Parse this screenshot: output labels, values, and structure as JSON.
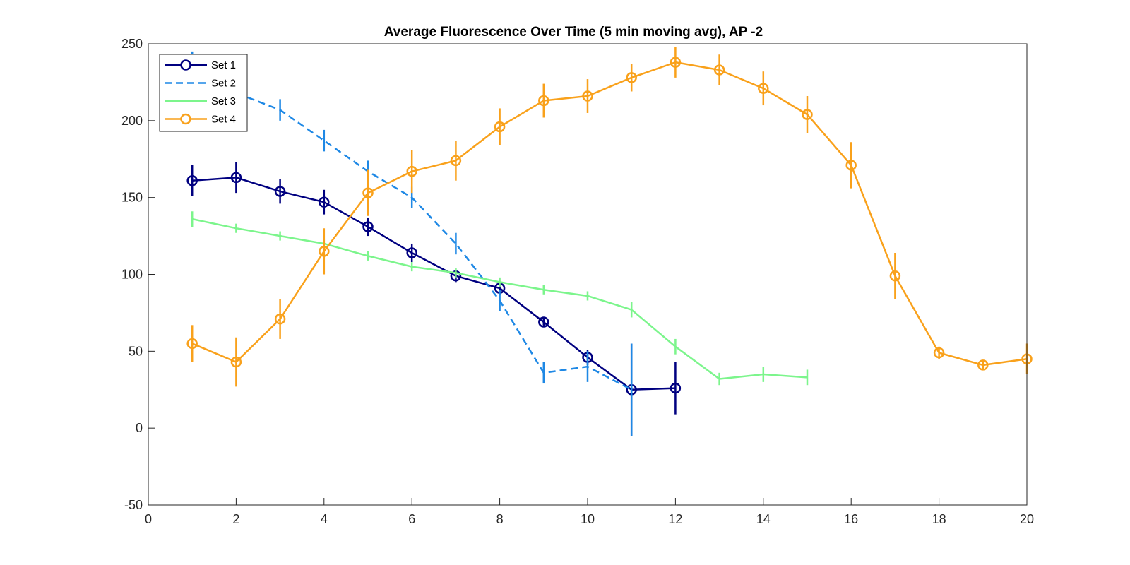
{
  "chart_data": {
    "type": "line",
    "title": "Average Fluorescence Over Time (5 min moving avg), AP -2",
    "xlabel": "",
    "ylabel": "",
    "xlim": [
      0,
      20
    ],
    "ylim": [
      -50,
      250
    ],
    "xticks": [
      "0",
      "2",
      "4",
      "6",
      "8",
      "10",
      "12",
      "14",
      "16",
      "18",
      "20"
    ],
    "yticks": [
      "-50",
      "0",
      "50",
      "100",
      "150",
      "200",
      "250"
    ],
    "grid": false,
    "legend_position": "top-left",
    "series": [
      {
        "name": "Set 1",
        "color": "#000080",
        "line_style": "solid",
        "marker": "circle",
        "x": [
          1,
          2,
          3,
          4,
          5,
          6,
          7,
          8,
          9,
          10,
          11,
          12
        ],
        "y": [
          161,
          163,
          154,
          147,
          131,
          114,
          99,
          91,
          69,
          46,
          25,
          26
        ],
        "err": [
          10,
          10,
          8,
          8,
          6,
          6,
          4,
          4,
          3,
          5,
          30,
          17
        ]
      },
      {
        "name": "Set 2",
        "color": "#1E88E5",
        "line_style": "dashed",
        "marker": "none",
        "x": [
          1,
          2,
          3,
          4,
          5,
          6,
          7,
          8,
          9,
          10,
          11
        ],
        "y": [
          240,
          218,
          207,
          187,
          167,
          150,
          120,
          83,
          36,
          40,
          25
        ],
        "err": [
          5,
          5,
          7,
          7,
          7,
          7,
          7,
          7,
          7,
          10,
          30
        ]
      },
      {
        "name": "Set 3",
        "color": "#7CF58C",
        "line_style": "solid",
        "marker": "none",
        "x": [
          1,
          2,
          3,
          4,
          5,
          6,
          7,
          8,
          9,
          10,
          11,
          12,
          13,
          14,
          15
        ],
        "y": [
          136,
          130,
          125,
          120,
          112,
          105,
          101,
          95,
          90,
          86,
          77,
          53,
          32,
          35,
          33
        ],
        "err": [
          5,
          3,
          3,
          3,
          3,
          3,
          3,
          3,
          3,
          3,
          5,
          5,
          4,
          5,
          5
        ]
      },
      {
        "name": "Set 4",
        "color": "#F9A11B",
        "line_style": "solid",
        "marker": "circle",
        "x": [
          1,
          2,
          3,
          4,
          5,
          6,
          7,
          8,
          9,
          10,
          11,
          12,
          13,
          14,
          15,
          16,
          17,
          18,
          19,
          20
        ],
        "y": [
          55,
          43,
          71,
          115,
          153,
          167,
          174,
          196,
          213,
          216,
          228,
          238,
          233,
          221,
          204,
          171,
          99,
          49,
          41,
          45
        ],
        "err": [
          12,
          16,
          13,
          15,
          15,
          14,
          13,
          12,
          11,
          11,
          9,
          10,
          10,
          11,
          12,
          15,
          15,
          4,
          3,
          10
        ]
      }
    ]
  }
}
